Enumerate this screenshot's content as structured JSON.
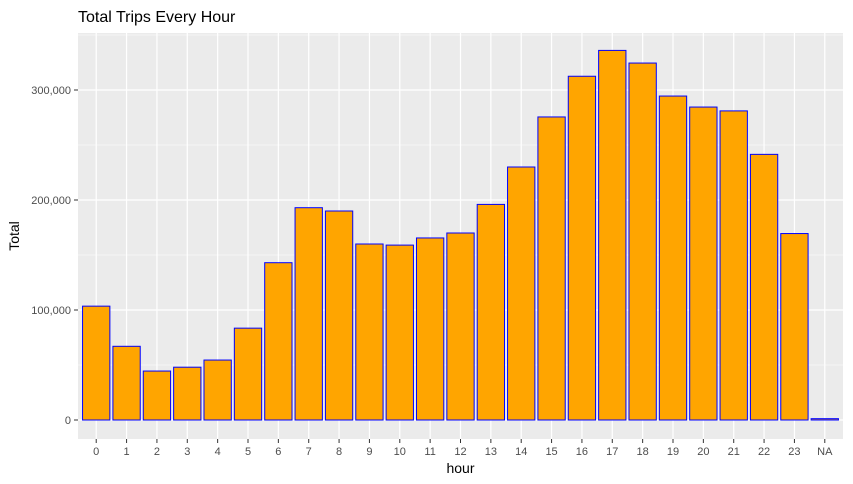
{
  "chart_data": {
    "type": "bar",
    "title": "Total Trips Every Hour",
    "xlabel": "hour",
    "ylabel": "Total",
    "categories": [
      "0",
      "1",
      "2",
      "3",
      "4",
      "5",
      "6",
      "7",
      "8",
      "9",
      "10",
      "11",
      "12",
      "13",
      "14",
      "15",
      "16",
      "17",
      "18",
      "19",
      "20",
      "21",
      "22",
      "23",
      "NA"
    ],
    "values": [
      103500,
      67000,
      44500,
      48000,
      54500,
      83500,
      143000,
      193000,
      190000,
      160000,
      159000,
      165500,
      170000,
      196000,
      230000,
      275500,
      312500,
      336000,
      324500,
      294500,
      284500,
      281000,
      241500,
      169500,
      1200
    ],
    "ylim": [
      0,
      350000
    ],
    "yticks": [
      0,
      100000,
      200000,
      300000
    ],
    "ytick_labels": [
      "0",
      "100,000",
      "200,000",
      "300,000"
    ],
    "grid": true,
    "colors": {
      "bar_fill": "#FFA500",
      "bar_outline": "#0000FF",
      "panel_background": "#EBEBEB",
      "grid": "#FFFFFF"
    }
  }
}
